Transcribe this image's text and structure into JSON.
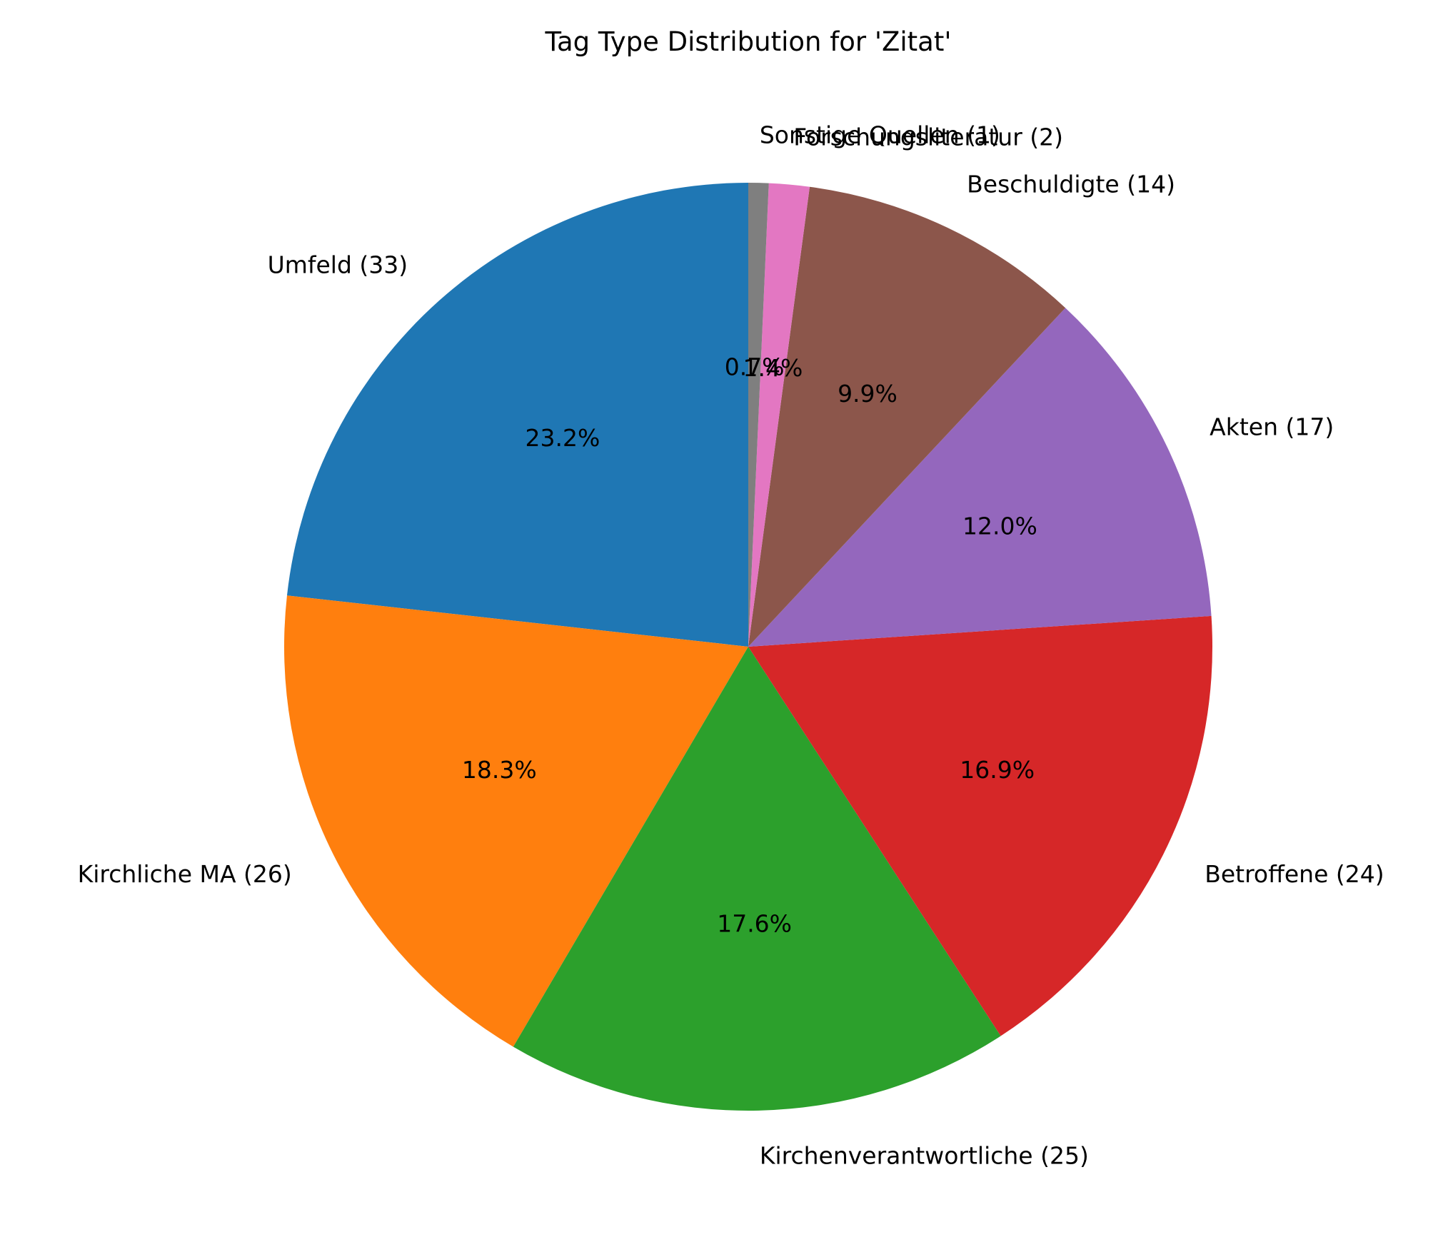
{
  "chart_data": {
    "type": "pie",
    "title": "Tag Type Distribution for 'Zitat'",
    "start_angle_deg": 90,
    "direction": "counterclockwise",
    "slices": [
      {
        "label": "Umfeld (33)",
        "value": 33,
        "percent_label": "23.2%",
        "color": "#1f77b4"
      },
      {
        "label": "Kirchliche MA (26)",
        "value": 26,
        "percent_label": "18.3%",
        "color": "#ff7f0e"
      },
      {
        "label": "Kirchenverantwortliche (25)",
        "value": 25,
        "percent_label": "17.6%",
        "color": "#2ca02c"
      },
      {
        "label": "Betroffene (24)",
        "value": 24,
        "percent_label": "16.9%",
        "color": "#d62728"
      },
      {
        "label": "Akten (17)",
        "value": 17,
        "percent_label": "12.0%",
        "color": "#9467bd"
      },
      {
        "label": "Beschuldigte (14)",
        "value": 14,
        "percent_label": "9.9%",
        "color": "#8c564b"
      },
      {
        "label": "Forschungsliteratur (2)",
        "value": 2,
        "percent_label": "1.4%",
        "color": "#e377c2"
      },
      {
        "label": "Sonstige Quellen (1)",
        "value": 1,
        "percent_label": "0.7%",
        "color": "#7f7f7f"
      }
    ]
  }
}
